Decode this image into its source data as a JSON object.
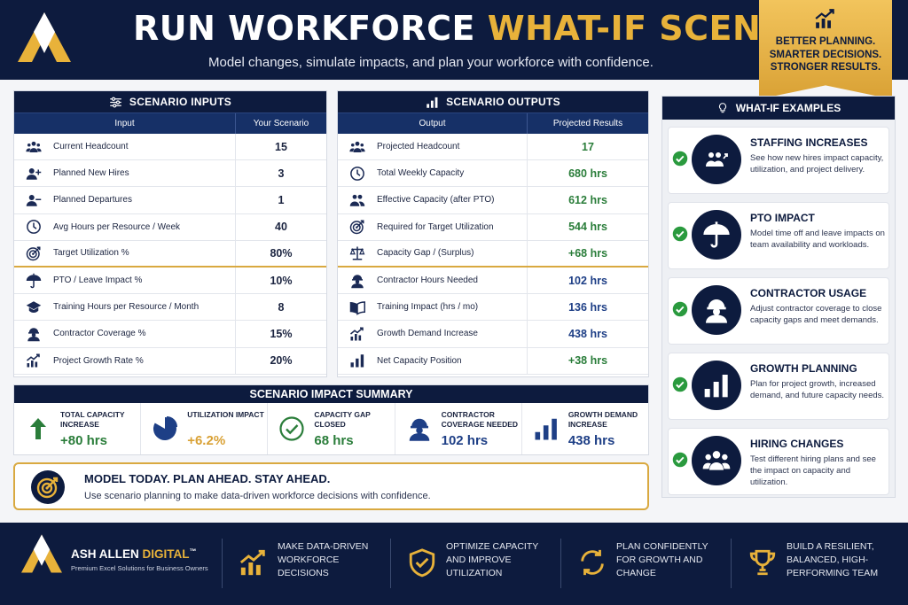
{
  "header": {
    "title_main": "RUN WORKFORCE ",
    "title_accent": "WHAT-IF SCENARIOS",
    "subtitle": "Model changes, simulate impacts, and plan your workforce with confidence.",
    "ribbon": [
      "BETTER PLANNING.",
      "SMARTER DECISIONS.",
      "STRONGER RESULTS."
    ]
  },
  "inputs": {
    "title": "SCENARIO INPUTS",
    "col_input": "Input",
    "col_value": "Your Scenario",
    "rows": [
      {
        "icon": "group-icon",
        "label": "Current Headcount",
        "value": "15"
      },
      {
        "icon": "add-user-icon",
        "label": "Planned New Hires",
        "value": "3"
      },
      {
        "icon": "remove-user-icon",
        "label": "Planned Departures",
        "value": "1"
      },
      {
        "icon": "clock-icon",
        "label": "Avg Hours per Resource / Week",
        "value": "40"
      },
      {
        "icon": "target-icon",
        "label": "Target Utilization %",
        "value": "80%"
      },
      {
        "icon": "umbrella-icon",
        "label": "PTO / Leave Impact %",
        "value": "10%"
      },
      {
        "icon": "graduation-cap-icon",
        "label": "Training Hours per Resource / Month",
        "value": "8"
      },
      {
        "icon": "worker-icon",
        "label": "Contractor Coverage %",
        "value": "15%"
      },
      {
        "icon": "growth-chart-icon",
        "label": "Project Growth Rate %",
        "value": "20%"
      }
    ]
  },
  "outputs": {
    "title": "SCENARIO OUTPUTS",
    "col_output": "Output",
    "col_value": "Projected Results",
    "rows": [
      {
        "icon": "group-icon",
        "label": "Projected Headcount",
        "value": "17"
      },
      {
        "icon": "clock-icon",
        "label": "Total Weekly Capacity",
        "value": "680 hrs"
      },
      {
        "icon": "people-icon",
        "label": "Effective Capacity (after PTO)",
        "value": "612 hrs"
      },
      {
        "icon": "target-icon",
        "label": "Required for Target Utilization",
        "value": "544 hrs"
      },
      {
        "icon": "scale-icon",
        "label": "Capacity Gap / (Surplus)",
        "value": "+68 hrs"
      },
      {
        "icon": "worker-icon",
        "label": "Contractor Hours Needed",
        "value": "102 hrs"
      },
      {
        "icon": "book-icon",
        "label": "Training Impact (hrs / mo)",
        "value": "136 hrs"
      },
      {
        "icon": "growth-chart-icon",
        "label": "Growth Demand Increase",
        "value": "438 hrs"
      },
      {
        "icon": "bar-chart-icon",
        "label": "Net Capacity Position",
        "value": "+38 hrs"
      }
    ]
  },
  "summary": {
    "title": "SCENARIO IMPACT SUMMARY",
    "cells": [
      {
        "label": "TOTAL CAPACITY INCREASE",
        "value": "+80 hrs",
        "color": "#2a7d3a"
      },
      {
        "label": "UTILIZATION IMPACT",
        "value": "+6.2%",
        "color": "#d9a135"
      },
      {
        "label": "CAPACITY GAP CLOSED",
        "value": "68 hrs",
        "color": "#2a7d3a"
      },
      {
        "label": "CONTRACTOR COVERAGE NEEDED",
        "value": "102 hrs",
        "color": "#1e3f86"
      },
      {
        "label": "GROWTH DEMAND INCREASE",
        "value": "438 hrs",
        "color": "#1e3f86"
      }
    ]
  },
  "banner": {
    "heading": "MODEL TODAY. PLAN AHEAD. STAY AHEAD.",
    "text": "Use scenario planning to make data-driven workforce decisions with confidence."
  },
  "examples": {
    "title": "WHAT-IF EXAMPLES",
    "cards": [
      {
        "heading": "STAFFING INCREASES",
        "desc": "See how new hires impact capacity, utilization, and project delivery."
      },
      {
        "heading": "PTO IMPACT",
        "desc": "Model time off and leave impacts on team availability and workloads."
      },
      {
        "heading": "CONTRACTOR USAGE",
        "desc": "Adjust contractor coverage to close capacity gaps and meet demands."
      },
      {
        "heading": "GROWTH PLANNING",
        "desc": "Plan for project growth, increased demand, and future capacity needs."
      },
      {
        "heading": "HIRING CHANGES",
        "desc": "Test different hiring plans and see the impact on capacity and utilization."
      }
    ]
  },
  "footer": {
    "brand_white": "ASH ALLEN ",
    "brand_gold": "DIGITAL",
    "brand_tm": "™",
    "tagline": "Premium Excel Solutions for Business Owners",
    "items": [
      "MAKE DATA-DRIVEN WORKFORCE DECISIONS",
      "OPTIMIZE CAPACITY AND IMPROVE UTILIZATION",
      "PLAN CONFIDENTLY FOR GROWTH AND CHANGE",
      "BUILD A RESILIENT, BALANCED, HIGH-PERFORMING TEAM"
    ]
  },
  "colors": {
    "navy": "#0d1b3e",
    "gold": "#e8b23a",
    "green": "#2a7d3a",
    "blue": "#1e3f86"
  }
}
